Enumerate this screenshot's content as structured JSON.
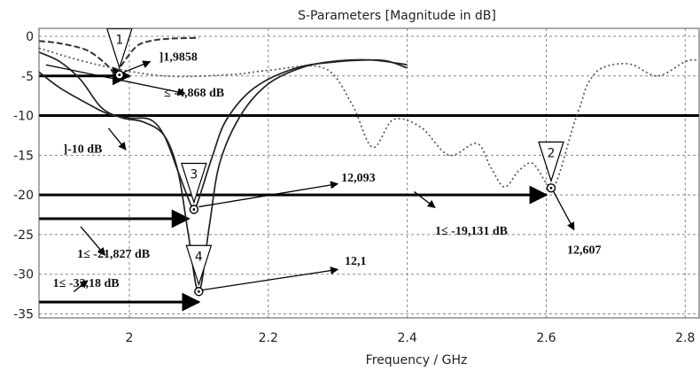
{
  "chart_data": {
    "type": "line",
    "title": "S-Parameters [Magnitude in dB]",
    "xlabel": "Frequency / GHz",
    "ylabel": "",
    "xlim": [
      1.87,
      2.82
    ],
    "ylim": [
      -35.5,
      1
    ],
    "xticks": [
      2,
      2.2,
      2.4,
      2.6,
      2.8
    ],
    "yticks": [
      0,
      -5,
      -10,
      -15,
      -20,
      -25,
      -30,
      -35
    ],
    "xtick_labels": [
      "2",
      "2.2",
      "2.4",
      "2.6",
      "2.8"
    ],
    "ytick_labels": [
      "0",
      "-5",
      "-10",
      "-15",
      "-20",
      "-25",
      "-30",
      "-35"
    ],
    "grid": true,
    "series": [
      {
        "style": "dashed",
        "color": "#333333",
        "x": [
          1.87,
          1.9,
          1.94,
          1.97,
          1.98,
          1.99,
          2.01,
          2.03,
          2.06,
          2.1
        ],
        "y": [
          -0.6,
          -0.9,
          -1.8,
          -3.8,
          -4.85,
          -3.5,
          -1.3,
          -0.6,
          -0.3,
          -0.2
        ]
      },
      {
        "style": "dotted",
        "color": "#555555",
        "x": [
          1.87,
          1.95,
          2.05,
          2.15,
          2.2,
          2.28,
          2.32,
          2.35,
          2.38,
          2.42,
          2.46,
          2.5,
          2.52,
          2.54,
          2.56,
          2.58,
          2.6,
          2.61,
          2.62,
          2.63,
          2.64,
          2.65,
          2.66,
          2.68,
          2.72,
          2.76,
          2.8,
          2.82
        ],
        "y": [
          -1.5,
          -3.5,
          -5.0,
          -4.8,
          -4.3,
          -4.0,
          -8.5,
          -14.0,
          -10.5,
          -11.5,
          -15.0,
          -13.5,
          -16.5,
          -19.0,
          -17.0,
          -16.0,
          -18.5,
          -19.1,
          -17.0,
          -14.0,
          -11.0,
          -8.5,
          -6.0,
          -4.0,
          -3.5,
          -5.0,
          -3.2,
          -3.0
        ]
      },
      {
        "style": "solid",
        "color": "#222222",
        "x": [
          1.87,
          1.9,
          1.94,
          1.97,
          2.0,
          2.03,
          2.05,
          2.07,
          2.085,
          2.093,
          2.1,
          2.12,
          2.14,
          2.18,
          2.24,
          2.3,
          2.34,
          2.37,
          2.4
        ],
        "y": [
          -4.5,
          -6.5,
          -8.5,
          -9.8,
          -10.3,
          -10.5,
          -12.5,
          -17.0,
          -20.5,
          -21.8,
          -20.5,
          -15.0,
          -10.5,
          -6.5,
          -4.0,
          -3.2,
          -3.0,
          -3.1,
          -4.0
        ]
      },
      {
        "style": "solid",
        "color": "#222222",
        "x": [
          1.87,
          1.9,
          1.93,
          1.96,
          1.99,
          2.02,
          2.05,
          2.07,
          2.085,
          2.1,
          2.115,
          2.13,
          2.16,
          2.2,
          2.25,
          2.3,
          2.35,
          2.4
        ],
        "y": [
          -2.0,
          -3.2,
          -5.5,
          -9.0,
          -10.3,
          -10.8,
          -12.5,
          -17.0,
          -25.0,
          -32.2,
          -24.0,
          -16.0,
          -10.0,
          -6.0,
          -3.9,
          -3.1,
          -3.0,
          -3.6
        ]
      }
    ],
    "markers": [
      {
        "id": "1",
        "x": 1.9858,
        "y": -4.868
      },
      {
        "id": "2",
        "x": 2.607,
        "y": -19.131
      },
      {
        "id": "3",
        "x": 2.093,
        "y": -21.827
      },
      {
        "id": "4",
        "x": 2.1,
        "y": -32.18
      }
    ],
    "reference_lines_db": [
      -5,
      -10,
      -20,
      -23,
      -33.5
    ],
    "annotations": [
      {
        "id": "f1",
        "text": "]1,9858"
      },
      {
        "id": "db1",
        "text": "≤ -4,868 dB"
      },
      {
        "id": "db10",
        "text": "]-10 dB"
      },
      {
        "id": "f3",
        "text": "12,093"
      },
      {
        "id": "db3",
        "text": "1≤ -21,827 dB"
      },
      {
        "id": "db2",
        "text": "1≤ -19,131 dB"
      },
      {
        "id": "f2",
        "text": "12,607"
      },
      {
        "id": "f4",
        "text": "12,1"
      },
      {
        "id": "db4",
        "text": "1≤ -32,18 dB"
      }
    ]
  }
}
